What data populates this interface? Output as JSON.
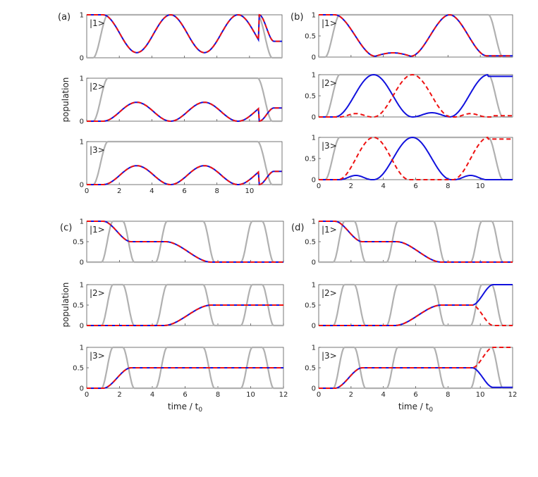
{
  "chart_data": {
    "type": "line",
    "groups": [
      {
        "label": "(a)",
        "state_labels": [
          "|1>",
          "|2>",
          "|3>"
        ],
        "ylabel": "population",
        "xlabel": "",
        "xlim": [
          0,
          12
        ],
        "xticks": [
          "0",
          "2",
          "4",
          "6",
          "8",
          "10"
        ],
        "yticks": [
          "0",
          "1"
        ],
        "series": [
          "population (solid blue)",
          "population (dashed red)",
          "pulse envelope (gray)"
        ]
      },
      {
        "label": "(b)",
        "state_labels": [
          "|1>",
          "|2>",
          "|3>"
        ],
        "ylabel": "",
        "xlabel": "",
        "xlim": [
          0,
          12
        ],
        "xticks": [
          "0",
          "2",
          "4",
          "6",
          "8",
          "10"
        ],
        "yticks": [
          "0",
          "0.5",
          "1"
        ]
      },
      {
        "label": "(c)",
        "state_labels": [
          "|1>",
          "|2>",
          "|3>"
        ],
        "ylabel": "population",
        "xlabel": "time / t",
        "xlim": [
          0,
          12
        ],
        "xticks": [
          "0",
          "2",
          "4",
          "6",
          "8",
          "10",
          "12"
        ],
        "yticks": [
          "0",
          "0.5",
          "1"
        ]
      },
      {
        "label": "(d)",
        "state_labels": [
          "|1>",
          "|2>",
          "|3>"
        ],
        "ylabel": "",
        "xlabel": "time / t",
        "xlim": [
          0,
          12
        ],
        "xticks": [
          "0",
          "2",
          "4",
          "6",
          "8",
          "10",
          "12"
        ],
        "yticks": [
          "0",
          "0.5",
          "1"
        ]
      }
    ],
    "xlabel_subscript": "0",
    "colors": {
      "solid": "#1111dd",
      "dashed": "#ee1111",
      "pulse": "#b0b0b0",
      "axes": "#555555"
    },
    "description_of_curves": {
      "a": "Rabi-like oscillations: |1> oscillates 1 to ~0.12 with period ~4.2; |2> and |3> oscillate 0 to ~0.44; ends 0.22/0.39/0.39",
      "b": "|1> goes 1 to ~0.1 to 0 and back to 1, ends ~0.03; |2> and |3> solid and dashed curves differ, peaks of 1",
      "c": "|1>: 1 -> 0.5 -> 0; |2>: 0 -> 0.5; |3>: 0 -> 0.5",
      "d": "Same as (c) until t~9.5, then |2> solid -> 1, dashed -> 0; |3> solid -> 0, dashed -> 1"
    }
  }
}
